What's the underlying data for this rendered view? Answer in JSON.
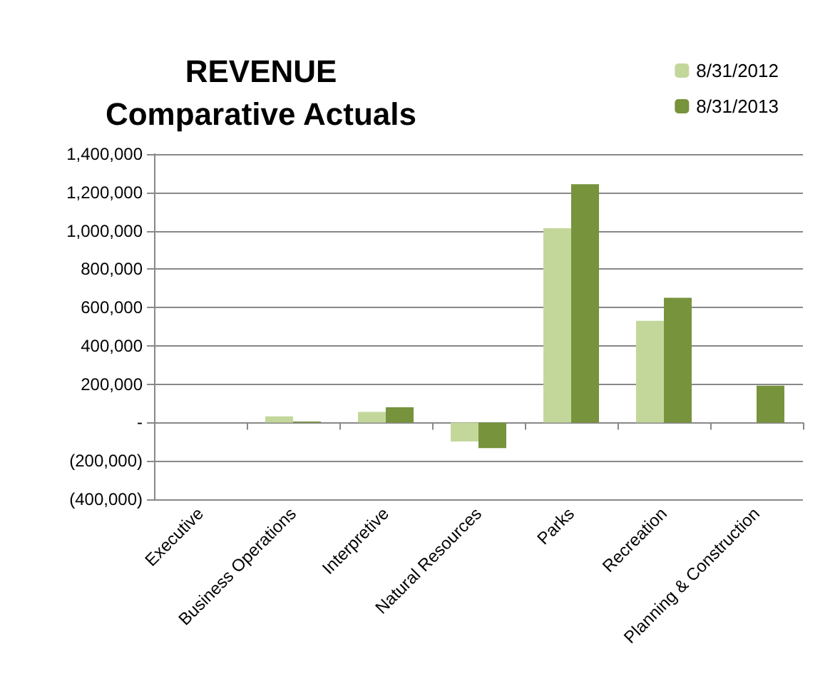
{
  "chart_data": {
    "type": "bar",
    "title": "REVENUE\nComparative Actuals",
    "categories": [
      "Executive",
      "Business Operations",
      "Interpretive",
      "Natural Resources",
      "Parks",
      "Recreation",
      "Planning & Construction"
    ],
    "series": [
      {
        "name": "8/31/2012",
        "color": "#c4d79b",
        "values": [
          0,
          32000,
          56000,
          -99000,
          1013000,
          531000,
          0
        ]
      },
      {
        "name": "8/31/2013",
        "color": "#77933c",
        "values": [
          0,
          5000,
          80000,
          -133000,
          1243000,
          651000,
          192000
        ]
      }
    ],
    "ylim": [
      -400000,
      1400000
    ],
    "yticks": [
      {
        "value": -400000,
        "label": "(400,000)"
      },
      {
        "value": -200000,
        "label": "(200,000)"
      },
      {
        "value": 0,
        "label": "-"
      },
      {
        "value": 200000,
        "label": "200,000"
      },
      {
        "value": 400000,
        "label": "400,000"
      },
      {
        "value": 600000,
        "label": "600,000"
      },
      {
        "value": 800000,
        "label": "800,000"
      },
      {
        "value": 1000000,
        "label": "1,000,000"
      },
      {
        "value": 1200000,
        "label": "1,200,000"
      },
      {
        "value": 1400000,
        "label": "1,400,000"
      }
    ],
    "grid": "y",
    "legend": "top right"
  }
}
